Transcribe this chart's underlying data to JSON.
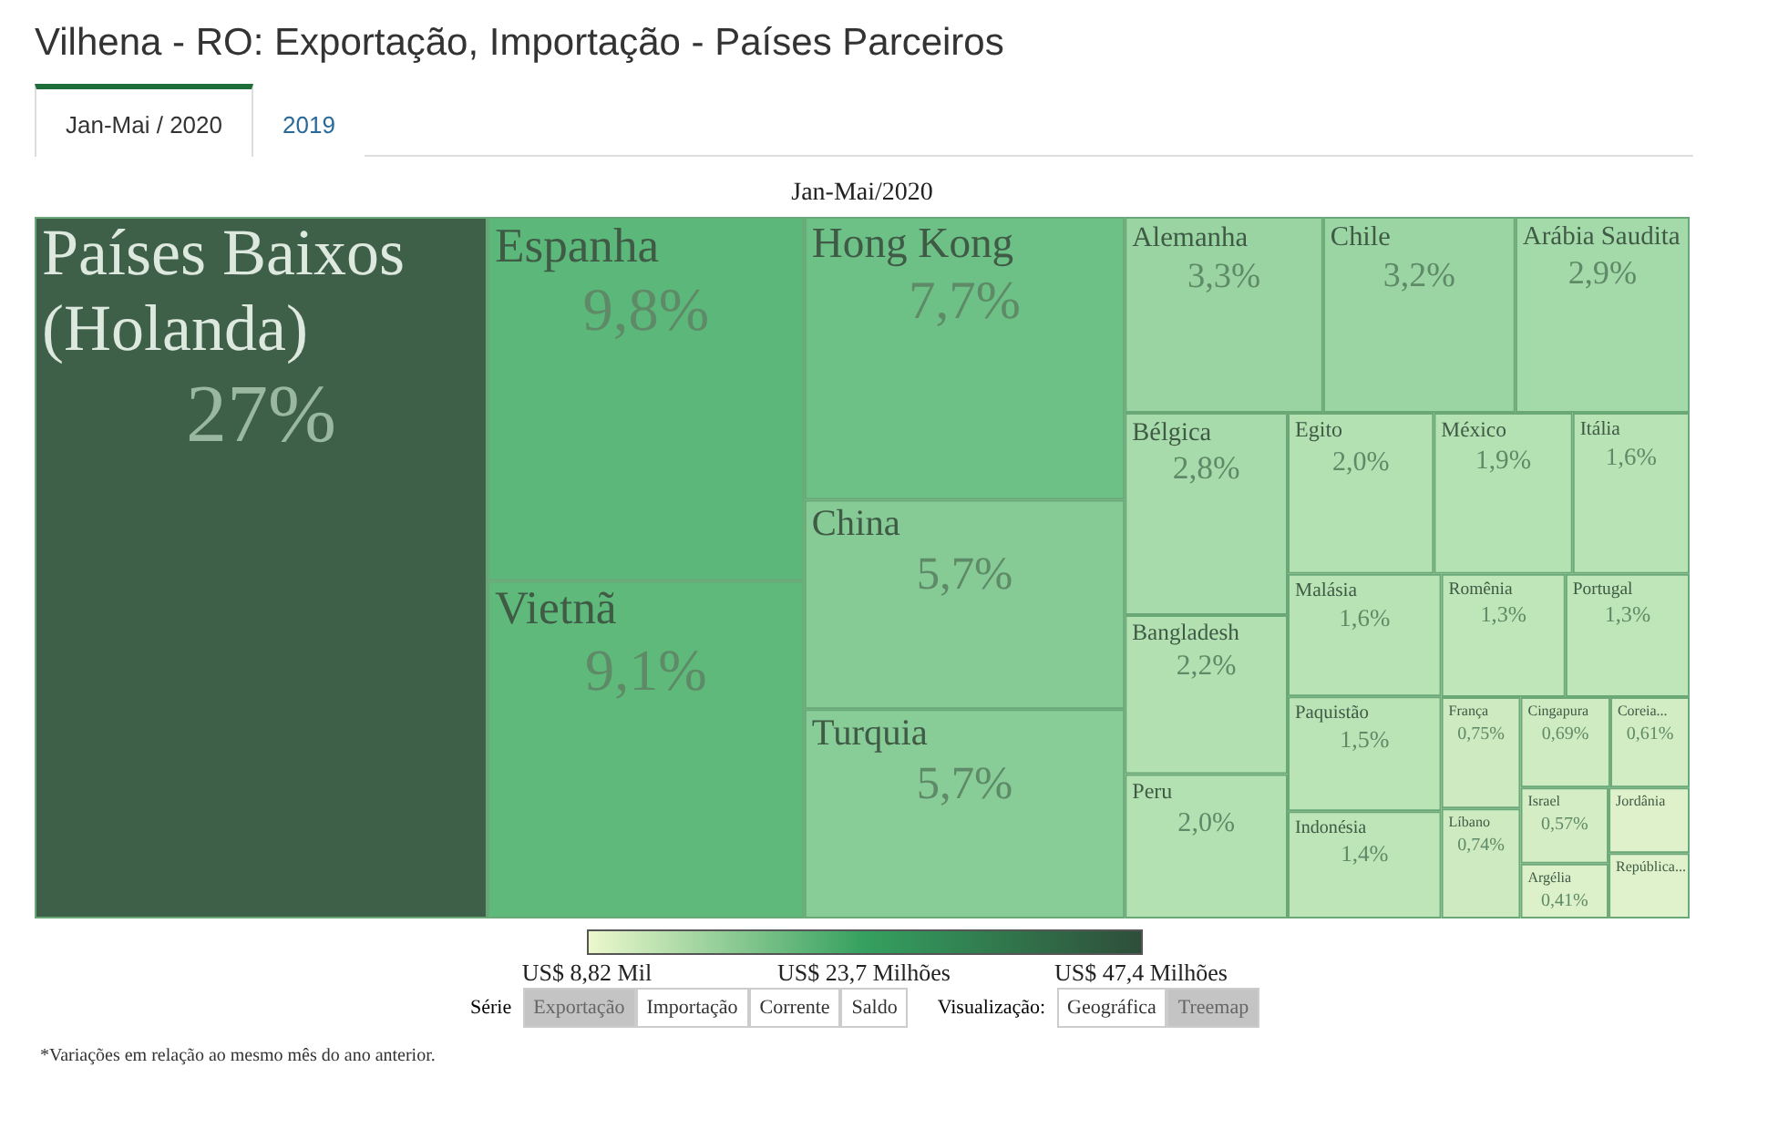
{
  "chart_data": {
    "type": "other",
    "title": "Vilhena - RO: Exportação, Importação - Países Parceiros",
    "subtitle": "Jan-Mai/2020",
    "categories": [
      "Países Baixos (Holanda)",
      "Espanha",
      "Vietnã",
      "Hong Kong",
      "China",
      "Turquia",
      "Alemanha",
      "Chile",
      "Arábia Saudita",
      "Bélgica",
      "Bangladesh",
      "Peru",
      "Egito",
      "México",
      "Itália",
      "Malásia",
      "Paquistão",
      "Indonésia",
      "Romênia",
      "Portugal",
      "França",
      "Líbano",
      "Cingapura",
      "Coreia...",
      "Israel",
      "Argélia",
      "Jordânia",
      "República..."
    ],
    "values": [
      27,
      9.8,
      9.1,
      7.7,
      5.7,
      5.7,
      3.3,
      3.2,
      2.9,
      2.8,
      2.2,
      2.0,
      2.0,
      1.9,
      1.6,
      1.6,
      1.5,
      1.4,
      1.3,
      1.3,
      0.75,
      0.74,
      0.69,
      0.61,
      0.57,
      0.41,
      null,
      null
    ],
    "value_labels": [
      "27%",
      "9,8%",
      "9,1%",
      "7,7%",
      "5,7%",
      "5,7%",
      "3,3%",
      "3,2%",
      "2,9%",
      "2,8%",
      "2,2%",
      "2,0%",
      "2,0%",
      "1,9%",
      "1,6%",
      "1,6%",
      "1,5%",
      "1,4%",
      "1,3%",
      "1,3%",
      "0,75%",
      "0,74%",
      "0,69%",
      "0,61%",
      "0,57%",
      "0,41%",
      null,
      null
    ],
    "colors": [
      "#3e5f48",
      "#5cb87a",
      "#5eb97b",
      "#6dc086",
      "#86cb96",
      "#88cc98",
      "#9ad4a3",
      "#9bd5a4",
      "#a4d9aa",
      "#a8dbab",
      "#b2e0b1",
      "#b4e1b2",
      "#b4e1b2",
      "#b5e2b2",
      "#b8e3b4",
      "#b8e3b4",
      "#bbe4b6",
      "#bde5b7",
      "#bfe6b8",
      "#bfe6b8",
      "#cdeac0",
      "#cdeac0",
      "#cfebc1",
      "#d2ecc3",
      "#d4edc4",
      "#dcf0c9",
      "#def1ca",
      "#e0f2cc"
    ],
    "annotations": [
      "Jan-Mai / 2020",
      "2019",
      "Série",
      "Exportação",
      "Importação",
      "Corrente",
      "Saldo",
      "Visualização:",
      "Geográfica",
      "Treemap",
      "*Variações em relação ao mesmo mês do ano anterior.",
      "US$ 8,82 Mil",
      "US$ 23,7 Milhões",
      "US$ 47,4 Milhões"
    ]
  }
}
